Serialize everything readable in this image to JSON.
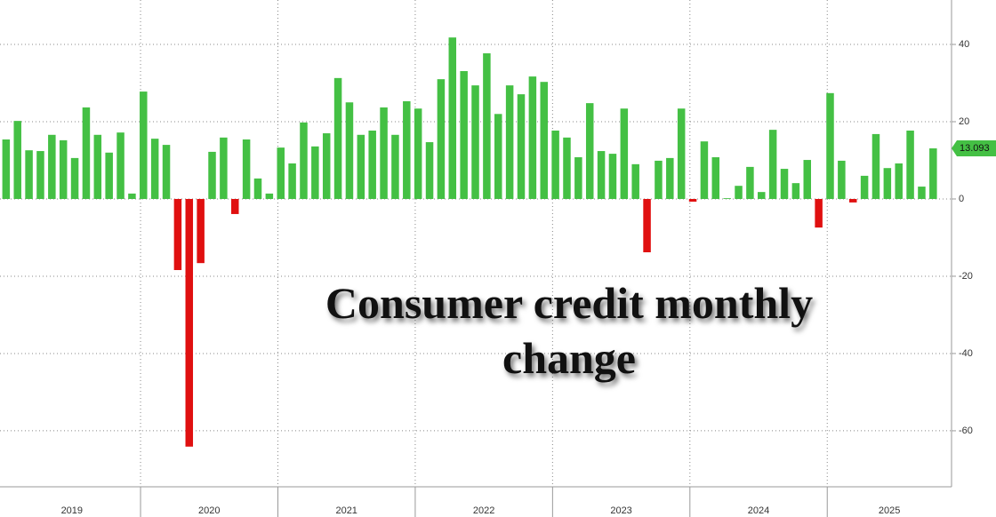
{
  "chart_data": {
    "type": "bar",
    "title": "Consumer credit monthly change",
    "values": [
      15.4,
      20.2,
      12.6,
      12.4,
      16.6,
      15.2,
      10.6,
      23.7,
      16.6,
      12.0,
      17.2,
      1.4,
      27.8,
      15.6,
      14.0,
      -18.4,
      -64.1,
      -16.6,
      12.2,
      15.9,
      -3.9,
      15.4,
      5.3,
      1.4,
      13.3,
      9.2,
      19.8,
      13.6,
      17.0,
      31.3,
      25.0,
      16.6,
      17.7,
      23.7,
      16.6,
      25.3,
      23.4,
      14.7,
      31.0,
      41.8,
      33.1,
      29.4,
      37.7,
      22.0,
      29.4,
      27.1,
      31.7,
      30.3,
      17.7,
      15.9,
      10.8,
      24.8,
      12.4,
      11.7,
      23.4,
      9.0,
      -13.8,
      9.9,
      10.6,
      23.4,
      -0.7,
      14.9,
      10.8,
      0.2,
      3.4,
      8.3,
      1.8,
      17.9,
      7.8,
      4.1,
      10.1,
      -7.4,
      27.4,
      9.9,
      -0.9,
      6.0,
      16.8,
      8.0,
      9.2,
      17.7,
      3.2,
      13.093
    ],
    "x_labels": [
      "2019",
      "2020",
      "2021",
      "2022",
      "2023",
      "2024",
      "2025"
    ],
    "colors": {
      "positive": "#44c044",
      "negative": "#e01010"
    },
    "ylim": [
      -74.5,
      51.5
    ],
    "yticks": [
      -60,
      -40,
      -20,
      0,
      20,
      40
    ],
    "grid": true
  }
}
